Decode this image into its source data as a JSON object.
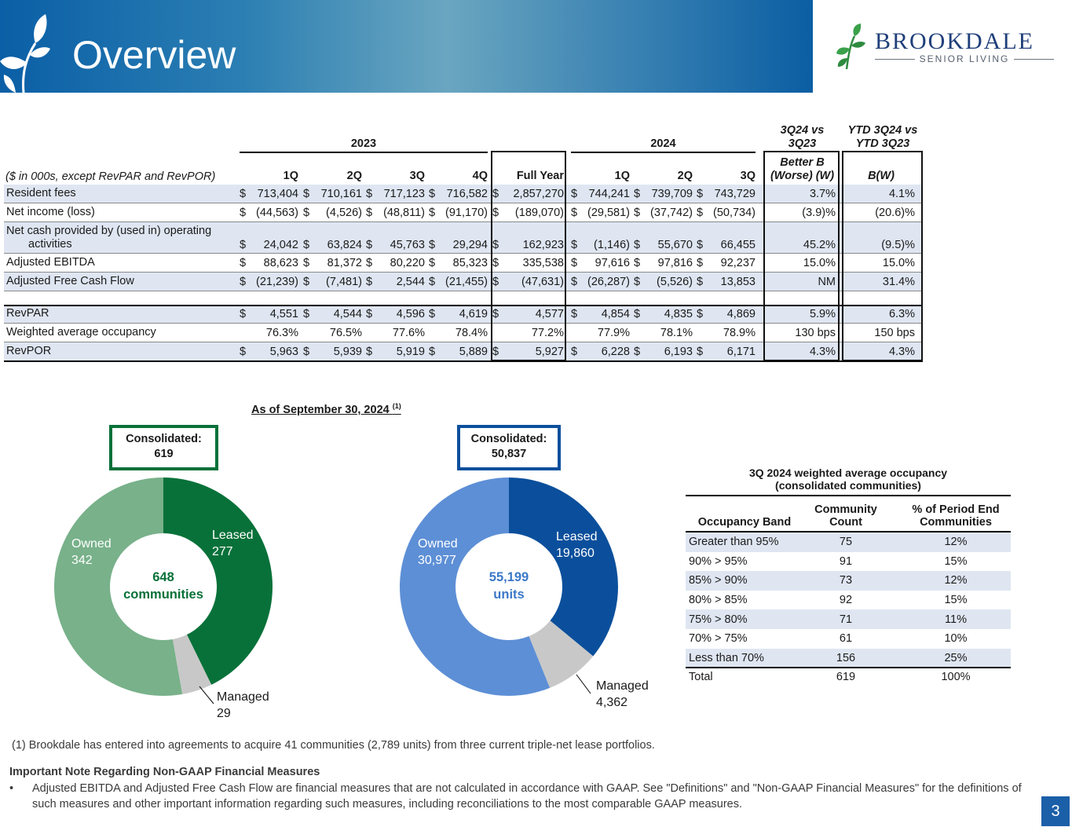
{
  "header": {
    "title": "Overview"
  },
  "logo": {
    "wordmark": "BROOKDALE",
    "tagline": "SENIOR LIVING"
  },
  "table": {
    "group_2023": "2023",
    "group_2024": "2024",
    "compare_q": "3Q24 vs\n3Q23",
    "compare_ytd": "YTD 3Q24 vs\nYTD 3Q23",
    "unit_note": "($ in 000s, except RevPAR and RevPOR)",
    "columns": [
      "1Q",
      "2Q",
      "3Q",
      "4Q",
      "Full Year",
      "1Q",
      "2Q",
      "3Q",
      "Better B\n(Worse) (W)",
      "B(W)"
    ],
    "rows": [
      {
        "label": "Resident fees",
        "cells": [
          [
            "$",
            "713,404"
          ],
          [
            "$",
            "710,161"
          ],
          [
            "$",
            "717,123"
          ],
          [
            "$",
            "716,582"
          ],
          [
            "$",
            "2,857,270"
          ],
          [
            "$",
            "744,241"
          ],
          [
            "$",
            "739,709"
          ],
          [
            "$",
            "743,729"
          ],
          [
            "",
            "3.7%"
          ],
          [
            "",
            "4.1%"
          ]
        ]
      },
      {
        "label": "Net income (loss)",
        "cells": [
          [
            "$",
            "(44,563)"
          ],
          [
            "$",
            "(4,526)"
          ],
          [
            "$",
            "(48,811)"
          ],
          [
            "$",
            "(91,170)"
          ],
          [
            "$",
            "(189,070)"
          ],
          [
            "$",
            "(29,581)"
          ],
          [
            "$",
            "(37,742)"
          ],
          [
            "$",
            "(50,734)"
          ],
          [
            "",
            "(3.9)%"
          ],
          [
            "",
            "(20.6)%"
          ]
        ]
      },
      {
        "label": "Net cash provided by (used in) operating",
        "label2": "activities",
        "cells": [
          [
            "$",
            "24,042"
          ],
          [
            "$",
            "63,824"
          ],
          [
            "$",
            "45,763"
          ],
          [
            "$",
            "29,294"
          ],
          [
            "$",
            "162,923"
          ],
          [
            "$",
            "(1,146)"
          ],
          [
            "$",
            "55,670"
          ],
          [
            "$",
            "66,455"
          ],
          [
            "",
            "45.2%"
          ],
          [
            "",
            "(9.5)%"
          ]
        ]
      },
      {
        "label": "Adjusted EBITDA",
        "cells": [
          [
            "$",
            "88,623"
          ],
          [
            "$",
            "81,372"
          ],
          [
            "$",
            "80,220"
          ],
          [
            "$",
            "85,323"
          ],
          [
            "$",
            "335,538"
          ],
          [
            "$",
            "97,616"
          ],
          [
            "$",
            "97,816"
          ],
          [
            "$",
            "92,237"
          ],
          [
            "",
            "15.0%"
          ],
          [
            "",
            "15.0%"
          ]
        ]
      },
      {
        "label": "Adjusted Free Cash Flow",
        "cells": [
          [
            "$",
            "(21,239)"
          ],
          [
            "$",
            "(7,481)"
          ],
          [
            "$",
            "2,544"
          ],
          [
            "$",
            "(21,455)"
          ],
          [
            "$",
            "(47,631)"
          ],
          [
            "$",
            "(26,287)"
          ],
          [
            "$",
            "(5,526)"
          ],
          [
            "$",
            "13,853"
          ],
          [
            "",
            "NM"
          ],
          [
            "",
            "31.4%"
          ]
        ]
      },
      {
        "label": "RevPAR",
        "cells": [
          [
            "$",
            "4,551"
          ],
          [
            "$",
            "4,544"
          ],
          [
            "$",
            "4,596"
          ],
          [
            "$",
            "4,619"
          ],
          [
            "$",
            "4,577"
          ],
          [
            "$",
            "4,854"
          ],
          [
            "$",
            "4,835"
          ],
          [
            "$",
            "4,869"
          ],
          [
            "",
            "5.9%"
          ],
          [
            "",
            "6.3%"
          ]
        ]
      },
      {
        "label": "Weighted average occupancy",
        "cells": [
          [
            "",
            "76.3%"
          ],
          [
            "",
            "76.5%"
          ],
          [
            "",
            "77.6%"
          ],
          [
            "",
            "78.4%"
          ],
          [
            "",
            "77.2%"
          ],
          [
            "",
            "77.9%"
          ],
          [
            "",
            "78.1%"
          ],
          [
            "",
            "78.9%"
          ],
          [
            "",
            "130 bps"
          ],
          [
            "",
            "150 bps"
          ]
        ]
      },
      {
        "label": "RevPOR",
        "cells": [
          [
            "$",
            "5,963"
          ],
          [
            "$",
            "5,939"
          ],
          [
            "$",
            "5,919"
          ],
          [
            "$",
            "5,889"
          ],
          [
            "$",
            "5,927"
          ],
          [
            "$",
            "6,228"
          ],
          [
            "$",
            "6,193"
          ],
          [
            "$",
            "6,171"
          ],
          [
            "",
            "4.3%"
          ],
          [
            "",
            "4.3%"
          ]
        ]
      }
    ]
  },
  "as_of": {
    "text": "As of September 30, 2024",
    "note": "(1)"
  },
  "communities_chart": {
    "box_title": "Consolidated:",
    "box_value": "619",
    "center_value": "648",
    "center_unit": "communities",
    "colors": {
      "leased": "#087139",
      "managed": "#c8c8c8",
      "owned": "#78b18a",
      "box": "#087139",
      "center_text": "#087139"
    },
    "segments": [
      {
        "name": "Leased",
        "value": 277
      },
      {
        "name": "Managed",
        "value": 29
      },
      {
        "name": "Owned",
        "value": 342
      }
    ],
    "labels": {
      "leased": "Leased",
      "leased_value": "277",
      "managed": "Managed",
      "managed_value": "29",
      "owned": "Owned",
      "owned_value": "342"
    }
  },
  "units_chart": {
    "box_title": "Consolidated:",
    "box_value": "50,837",
    "center_value": "55,199",
    "center_unit": "units",
    "colors": {
      "leased": "#0b4f9c",
      "managed": "#c8c8c8",
      "owned": "#5d8fd6",
      "box": "#0b4f9c",
      "center_text": "#3a78c8"
    },
    "segments": [
      {
        "name": "Leased",
        "value": 19860
      },
      {
        "name": "Managed",
        "value": 4362
      },
      {
        "name": "Owned",
        "value": 30977
      }
    ],
    "labels": {
      "leased": "Leased",
      "leased_value": "19,860",
      "managed": "Managed",
      "managed_value": "4,362",
      "owned": "Owned",
      "owned_value": "30,977"
    }
  },
  "occupancy": {
    "title": "3Q 2024 weighted average occupancy\n(consolidated communities)",
    "headers": [
      "Occupancy Band",
      "Community\nCount",
      "% of Period End\nCommunities"
    ],
    "rows": [
      [
        "Greater than 95%",
        "75",
        "12%"
      ],
      [
        "90% > 95%",
        "91",
        "15%"
      ],
      [
        "85% > 90%",
        "73",
        "12%"
      ],
      [
        "80% > 85%",
        "92",
        "15%"
      ],
      [
        "75% > 80%",
        "71",
        "11%"
      ],
      [
        "70% > 75%",
        "61",
        "10%"
      ],
      [
        "Less than 70%",
        "156",
        "25%"
      ],
      [
        "Total",
        "619",
        "100%"
      ]
    ]
  },
  "footer": {
    "footnote": "(1)  Brookdale has entered into agreements to acquire 41 communities (2,789 units) from three current triple-net lease portfolios.",
    "note_heading": "Important Note Regarding Non-GAAP Financial Measures",
    "bullet": "•",
    "note_body": "Adjusted EBITDA and Adjusted Free Cash Flow are financial measures that are not calculated in accordance with GAAP. See \"Definitions\" and \"Non-GAAP Financial Measures\" for the definitions of such measures and other important information regarding such measures, including reconciliations to the most comparable GAAP measures.",
    "page": "3"
  }
}
